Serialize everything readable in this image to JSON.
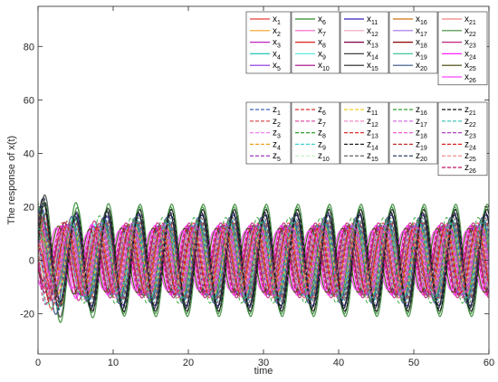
{
  "chart_data": {
    "type": "line",
    "title": "",
    "xlabel": "time",
    "ylabel": "The response of x(t)",
    "xlim": [
      0,
      60
    ],
    "ylim": [
      -35,
      95
    ],
    "xticks": [
      0,
      10,
      20,
      30,
      40,
      50,
      60
    ],
    "yticks": [
      -20,
      0,
      20,
      40,
      60,
      80
    ],
    "xtick_labels": [
      "0",
      "10",
      "20",
      "30",
      "40",
      "50",
      "60"
    ],
    "ytick_labels": [
      "-20",
      "0",
      "20",
      "40",
      "60",
      "80"
    ],
    "grid": false,
    "period": 4.2,
    "legend_placement": "top-right",
    "series": [
      {
        "name": "x1",
        "group": "x",
        "color": "#e8413a",
        "style": "solid",
        "amplitude": 14,
        "phase": 0.0
      },
      {
        "name": "x2",
        "group": "x",
        "color": "#f0a020",
        "style": "solid",
        "amplitude": 12,
        "phase": 0.6
      },
      {
        "name": "x3",
        "group": "x",
        "color": "#c020c0",
        "style": "solid",
        "amplitude": 15,
        "phase": 1.2
      },
      {
        "name": "x4",
        "group": "x",
        "color": "#20c8b8",
        "style": "solid",
        "amplitude": 13,
        "phase": 0.9
      },
      {
        "name": "x5",
        "group": "x",
        "color": "#8a2be2",
        "style": "solid",
        "amplitude": 14,
        "phase": 1.5
      },
      {
        "name": "x6",
        "group": "x",
        "color": "#2e8b2e",
        "style": "solid",
        "amplitude": 20,
        "phase": 0.3
      },
      {
        "name": "x7",
        "group": "x",
        "color": "#f060c8",
        "style": "solid",
        "amplitude": 12,
        "phase": 2.0
      },
      {
        "name": "x8",
        "group": "x",
        "color": "#e02020",
        "style": "solid",
        "amplitude": 11,
        "phase": 2.4
      },
      {
        "name": "x9",
        "group": "x",
        "color": "#60e8e8",
        "style": "solid",
        "amplitude": 13,
        "phase": 2.8
      },
      {
        "name": "x10",
        "group": "x",
        "color": "#a00080",
        "style": "solid",
        "amplitude": 12,
        "phase": 3.1
      },
      {
        "name": "x11",
        "group": "x",
        "color": "#3020c0",
        "style": "solid",
        "amplitude": 17,
        "phase": 0.4
      },
      {
        "name": "x12",
        "group": "x",
        "color": "#f4a0c0",
        "style": "solid",
        "amplitude": 11,
        "phase": 1.8
      },
      {
        "name": "x13",
        "group": "x",
        "color": "#800040",
        "style": "solid",
        "amplitude": 13,
        "phase": 2.6
      },
      {
        "name": "x14",
        "group": "x",
        "color": "#404040",
        "style": "solid",
        "amplitude": 19,
        "phase": 0.2
      },
      {
        "name": "x15",
        "group": "x",
        "color": "#202020",
        "style": "solid",
        "amplitude": 18,
        "phase": 0.5
      },
      {
        "name": "x16",
        "group": "x",
        "color": "#d07010",
        "style": "solid",
        "amplitude": 12,
        "phase": 1.0
      },
      {
        "name": "x17",
        "group": "x",
        "color": "#a070e8",
        "style": "solid",
        "amplitude": 14,
        "phase": 1.4
      },
      {
        "name": "x18",
        "group": "x",
        "color": "#8b0000",
        "style": "solid",
        "amplitude": 13,
        "phase": 2.2
      },
      {
        "name": "x19",
        "group": "x",
        "color": "#40c8a0",
        "style": "solid",
        "amplitude": 15,
        "phase": 0.7
      },
      {
        "name": "x20",
        "group": "x",
        "color": "#305080",
        "style": "solid",
        "amplitude": 16,
        "phase": 1.1
      },
      {
        "name": "x21",
        "group": "x",
        "color": "#f08080",
        "style": "solid",
        "amplitude": 12,
        "phase": 1.6
      },
      {
        "name": "x22",
        "group": "x",
        "color": "#3a8a3a",
        "style": "solid",
        "amplitude": 21,
        "phase": 0.1
      },
      {
        "name": "x23",
        "group": "x",
        "color": "#c02080",
        "style": "solid",
        "amplitude": 14,
        "phase": 2.9
      },
      {
        "name": "x24",
        "group": "x",
        "color": "#ff20ff",
        "style": "solid",
        "amplitude": 13,
        "phase": 3.4
      },
      {
        "name": "x25",
        "group": "x",
        "color": "#404000",
        "style": "solid",
        "amplitude": 12,
        "phase": 3.8
      },
      {
        "name": "x26",
        "group": "x",
        "color": "#ff40ff",
        "style": "solid",
        "amplitude": 11,
        "phase": 4.2
      },
      {
        "name": "z1",
        "group": "z",
        "color": "#4060c0",
        "style": "dashed",
        "amplitude": 15,
        "phase": 0.8
      },
      {
        "name": "z2",
        "group": "z",
        "color": "#d04040",
        "style": "dashed",
        "amplitude": 13,
        "phase": 1.3
      },
      {
        "name": "z3",
        "group": "z",
        "color": "#f080f0",
        "style": "dashed",
        "amplitude": 14,
        "phase": 1.7
      },
      {
        "name": "z4",
        "group": "z",
        "color": "#f0a020",
        "style": "dashed",
        "amplitude": 12,
        "phase": 2.1
      },
      {
        "name": "z5",
        "group": "z",
        "color": "#9020c0",
        "style": "dashed",
        "amplitude": 13,
        "phase": 2.5
      },
      {
        "name": "z6",
        "group": "z",
        "color": "#e03030",
        "style": "dashed",
        "amplitude": 14,
        "phase": 0.5
      },
      {
        "name": "z7",
        "group": "z",
        "color": "#e040a0",
        "style": "dashed",
        "amplitude": 12,
        "phase": 1.0
      },
      {
        "name": "z8",
        "group": "z",
        "color": "#30a030",
        "style": "dashed",
        "amplitude": 16,
        "phase": 1.9
      },
      {
        "name": "z9",
        "group": "z",
        "color": "#40d0d0",
        "style": "dashed",
        "amplitude": 13,
        "phase": 2.3
      },
      {
        "name": "z10",
        "group": "z",
        "color": "#c0f0c0",
        "style": "dashed",
        "amplitude": 11,
        "phase": 2.7
      },
      {
        "name": "z11",
        "group": "z",
        "color": "#f0d020",
        "style": "dashed",
        "amplitude": 12,
        "phase": 0.9
      },
      {
        "name": "z12",
        "group": "z",
        "color": "#f080c0",
        "style": "dashed",
        "amplitude": 13,
        "phase": 1.5
      },
      {
        "name": "z13",
        "group": "z",
        "color": "#e03030",
        "style": "dashed",
        "amplitude": 14,
        "phase": 2.0
      },
      {
        "name": "z14",
        "group": "z",
        "color": "#202020",
        "style": "dashed",
        "amplitude": 17,
        "phase": 0.3
      },
      {
        "name": "z15",
        "group": "z",
        "color": "#505050",
        "style": "dashed",
        "amplitude": 16,
        "phase": 0.6
      },
      {
        "name": "z16",
        "group": "z",
        "color": "#30a030",
        "style": "dashed",
        "amplitude": 15,
        "phase": 1.2
      },
      {
        "name": "z17",
        "group": "z",
        "color": "#d060e0",
        "style": "dashed",
        "amplitude": 13,
        "phase": 1.8
      },
      {
        "name": "z18",
        "group": "z",
        "color": "#f060d0",
        "style": "dashed",
        "amplitude": 12,
        "phase": 2.4
      },
      {
        "name": "z19",
        "group": "z",
        "color": "#c03030",
        "style": "dashed",
        "amplitude": 13,
        "phase": 3.0
      },
      {
        "name": "z20",
        "group": "z",
        "color": "#1a2a50",
        "style": "dashed",
        "amplitude": 18,
        "phase": 0.4
      },
      {
        "name": "z21",
        "group": "z",
        "color": "#101010",
        "style": "dashed",
        "amplitude": 19,
        "phase": 0.2
      },
      {
        "name": "z22",
        "group": "z",
        "color": "#30c0b0",
        "style": "dashed",
        "amplitude": 14,
        "phase": 1.1
      },
      {
        "name": "z23",
        "group": "z",
        "color": "#b040c0",
        "style": "dashed",
        "amplitude": 13,
        "phase": 1.6
      },
      {
        "name": "z24",
        "group": "z",
        "color": "#e02020",
        "style": "dashed",
        "amplitude": 12,
        "phase": 2.2
      },
      {
        "name": "z25",
        "group": "z",
        "color": "#f08080",
        "style": "dashed",
        "amplitude": 11,
        "phase": 2.8
      },
      {
        "name": "z26",
        "group": "z",
        "color": "#c01060",
        "style": "dashed",
        "amplitude": 12,
        "phase": 3.3
      }
    ]
  }
}
